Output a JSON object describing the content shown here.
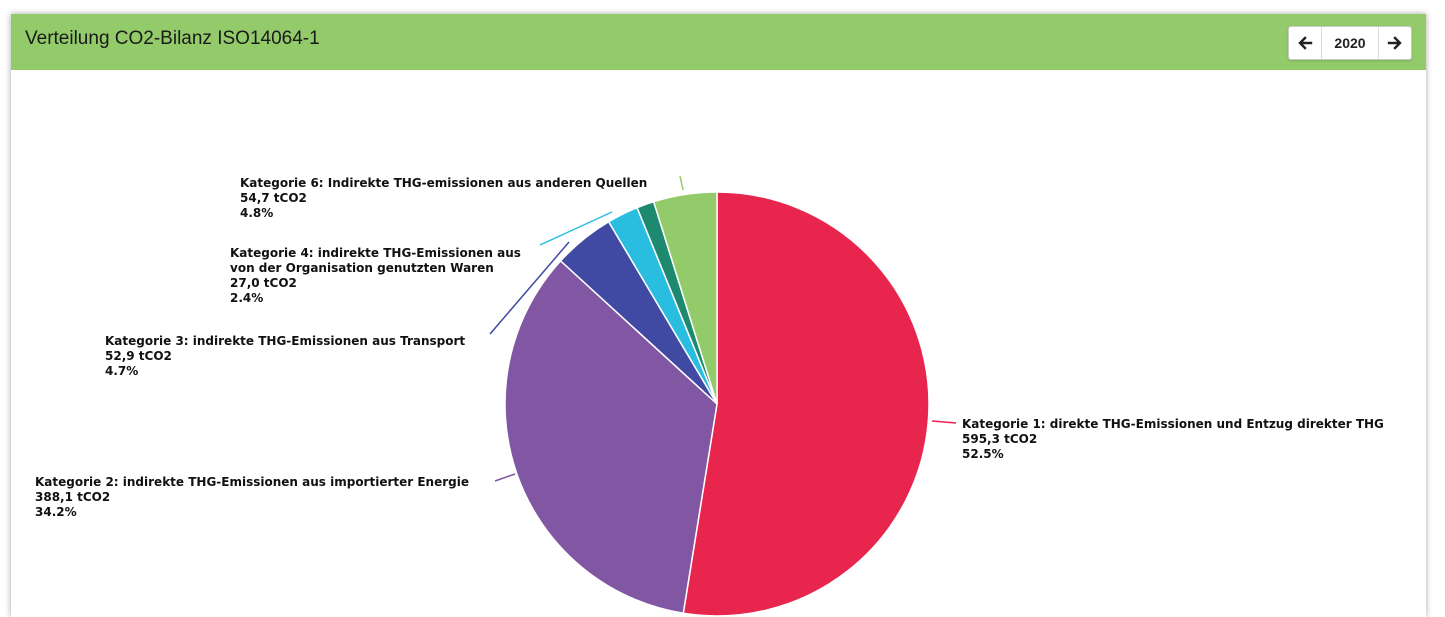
{
  "header": {
    "title": "Verteilung CO2-Bilanz ISO14064-1",
    "year": "2020",
    "prev_icon": "arrow-left-icon",
    "next_icon": "arrow-right-icon",
    "bar_color": "#93cb6b"
  },
  "chart_data": {
    "type": "pie",
    "title": "",
    "unit": "tCO2",
    "slices": [
      {
        "lines": [
          "Kategorie 1: direkte THG-Emissionen und Entzug direkter THG"
        ],
        "value_label": "595,3 tCO2",
        "pct_label": "52.5%",
        "value": 595.3,
        "percent": 52.5,
        "color": "#e8254d"
      },
      {
        "lines": [
          "Kategorie 2: indirekte THG-Emissionen aus importierter Energie"
        ],
        "value_label": "388,1 tCO2",
        "pct_label": "34.2%",
        "value": 388.1,
        "percent": 34.2,
        "color": "#8157a3"
      },
      {
        "lines": [
          "Kategorie 3: indirekte THG-Emissionen aus Transport"
        ],
        "value_label": "52,9 tCO2",
        "pct_label": "4.7%",
        "value": 52.9,
        "percent": 4.7,
        "color": "#414aa3"
      },
      {
        "lines": [
          "Kategorie 4: indirekte THG-Emissionen aus",
          "von der Organisation genutzten Waren"
        ],
        "value_label": "27,0 tCO2",
        "pct_label": "2.4%",
        "value": 27.0,
        "percent": 2.4,
        "color": "#29bde0"
      },
      {
        "lines": [],
        "value_label": "",
        "pct_label": "",
        "value": 15.0,
        "percent": 1.3,
        "color": "#1d8a6f"
      },
      {
        "lines": [
          "Kategorie 6: Indirekte THG-emissionen aus anderen Quellen"
        ],
        "value_label": "54,7 tCO2",
        "pct_label": "4.8%",
        "value": 54.7,
        "percent": 4.8,
        "color": "#93cb6b"
      }
    ]
  }
}
